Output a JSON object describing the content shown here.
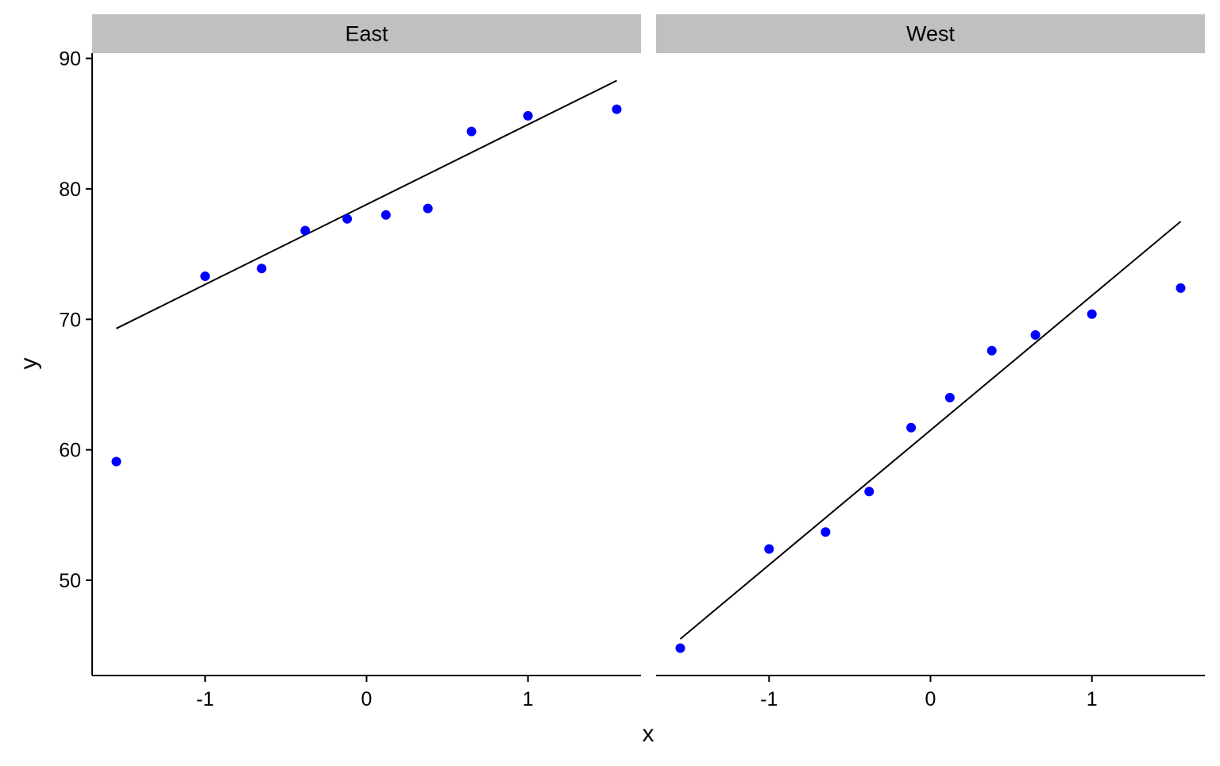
{
  "chart_data": {
    "type": "scatter",
    "xlabel": "x",
    "ylabel": "y",
    "xlim": [
      -1.7,
      1.7
    ],
    "ylim": [
      42.7,
      90.4
    ],
    "x_ticks": [
      -1,
      0,
      1
    ],
    "x_tick_labels": [
      "-1",
      "0",
      "1"
    ],
    "y_ticks": [
      50,
      60,
      70,
      80,
      90
    ],
    "y_tick_labels": [
      "50",
      "60",
      "70",
      "80",
      "90"
    ],
    "grid": false,
    "legend": "none",
    "colors": {
      "points": "#0000ff",
      "fit_line": "#000000",
      "strip": "#c0c0c0"
    },
    "panels": [
      {
        "label": "East",
        "points": [
          {
            "x": -1.55,
            "y": 59.1
          },
          {
            "x": -1.0,
            "y": 73.3
          },
          {
            "x": -0.65,
            "y": 73.9
          },
          {
            "x": -0.38,
            "y": 76.8
          },
          {
            "x": -0.12,
            "y": 77.7
          },
          {
            "x": 0.12,
            "y": 78.0
          },
          {
            "x": 0.38,
            "y": 78.5
          },
          {
            "x": 0.65,
            "y": 84.4
          },
          {
            "x": 1.0,
            "y": 85.6
          },
          {
            "x": 1.55,
            "y": 86.1
          }
        ],
        "fit_line": [
          {
            "x": -1.55,
            "y": 69.3
          },
          {
            "x": 1.55,
            "y": 88.3
          }
        ]
      },
      {
        "label": "West",
        "points": [
          {
            "x": -1.55,
            "y": 44.8
          },
          {
            "x": -1.0,
            "y": 52.4
          },
          {
            "x": -0.65,
            "y": 53.7
          },
          {
            "x": -0.38,
            "y": 56.8
          },
          {
            "x": -0.12,
            "y": 61.7
          },
          {
            "x": 0.12,
            "y": 64.0
          },
          {
            "x": 0.38,
            "y": 67.6
          },
          {
            "x": 0.65,
            "y": 68.8
          },
          {
            "x": 1.0,
            "y": 70.4
          },
          {
            "x": 1.55,
            "y": 72.4
          }
        ],
        "fit_line": [
          {
            "x": -1.55,
            "y": 45.5
          },
          {
            "x": 1.55,
            "y": 77.5
          }
        ]
      }
    ]
  }
}
